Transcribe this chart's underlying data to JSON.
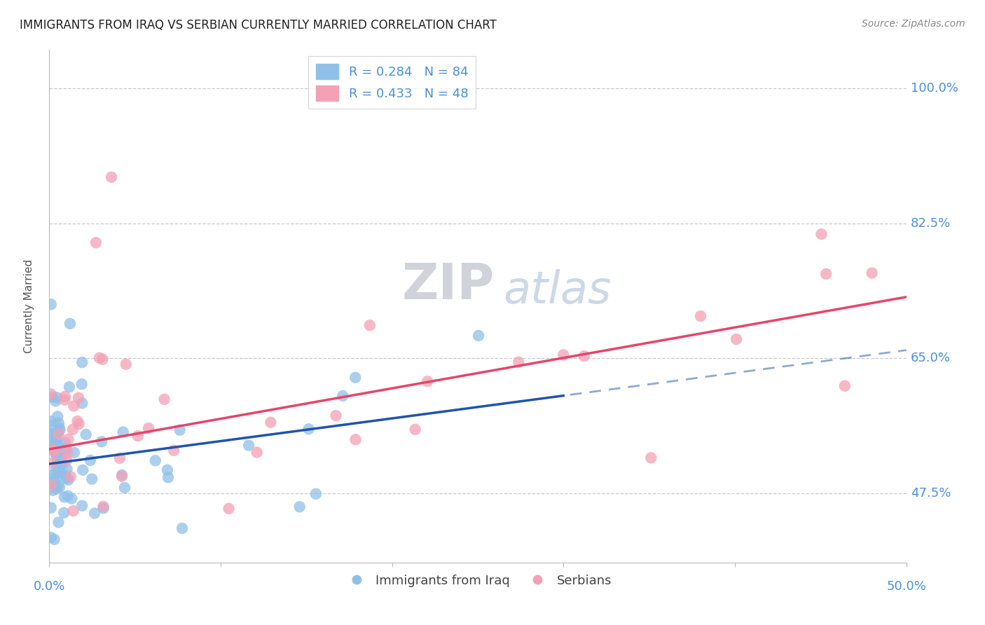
{
  "title": "IMMIGRANTS FROM IRAQ VS SERBIAN CURRENTLY MARRIED CORRELATION CHART",
  "source": "Source: ZipAtlas.com",
  "ylabel": "Currently Married",
  "legend_labels": [
    "Immigrants from Iraq",
    "Serbians"
  ],
  "watermark_part1": "ZIP",
  "watermark_part2": "atlas",
  "iraq_color": "#90c0e8",
  "serbian_color": "#f4a0b5",
  "iraq_line_color": "#2255aa",
  "serbian_line_color": "#e8446a",
  "background_color": "#ffffff",
  "grid_color": "#c8c8d0",
  "title_color": "#222222",
  "axis_label_color": "#4a90d9",
  "source_color": "#888888",
  "xmin": 0.0,
  "xmax": 0.5,
  "ymin": 0.385,
  "ymax": 1.05,
  "ytick_vals": [
    0.475,
    0.65,
    0.825,
    1.0
  ],
  "ytick_labels": [
    "47.5%",
    "65.0%",
    "82.5%",
    "100.0%"
  ],
  "xtick_vals": [
    0.0,
    0.1,
    0.2,
    0.3,
    0.4,
    0.5
  ],
  "xtick_labels": [
    "0.0%",
    "",
    "",
    "",
    "",
    "50.0%"
  ],
  "iraq_R": 0.284,
  "iraq_N": 84,
  "serbian_R": 0.433,
  "serbian_N": 48,
  "iraq_line_intercept": 0.515,
  "iraq_line_slope": 0.28,
  "serbian_line_intercept": 0.535,
  "serbian_line_slope": 0.38
}
